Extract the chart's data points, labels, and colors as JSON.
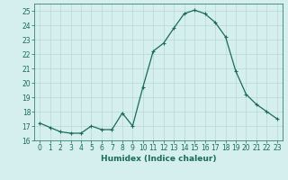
{
  "x": [
    0,
    1,
    2,
    3,
    4,
    5,
    6,
    7,
    8,
    9,
    10,
    11,
    12,
    13,
    14,
    15,
    16,
    17,
    18,
    19,
    20,
    21,
    22,
    23
  ],
  "y": [
    17.2,
    16.9,
    16.6,
    16.5,
    16.5,
    17.0,
    16.75,
    16.75,
    17.9,
    17.0,
    19.7,
    22.2,
    22.75,
    23.8,
    24.8,
    25.05,
    24.8,
    24.2,
    23.2,
    20.8,
    19.2,
    18.5,
    18.0,
    17.5
  ],
  "line_color": "#1a6b5a",
  "marker": "+",
  "marker_size": 3,
  "marker_lw": 0.8,
  "bg_color": "#d5eeee",
  "grid_color": "#b8d8d8",
  "xlabel": "Humidex (Indice chaleur)",
  "xlim": [
    -0.5,
    23.5
  ],
  "ylim": [
    16.0,
    25.5
  ],
  "yticks": [
    16,
    17,
    18,
    19,
    20,
    21,
    22,
    23,
    24,
    25
  ],
  "xticks": [
    0,
    1,
    2,
    3,
    4,
    5,
    6,
    7,
    8,
    9,
    10,
    11,
    12,
    13,
    14,
    15,
    16,
    17,
    18,
    19,
    20,
    21,
    22,
    23
  ],
  "xlabel_fontsize": 6.5,
  "tick_fontsize": 5.5,
  "linewidth": 0.9
}
